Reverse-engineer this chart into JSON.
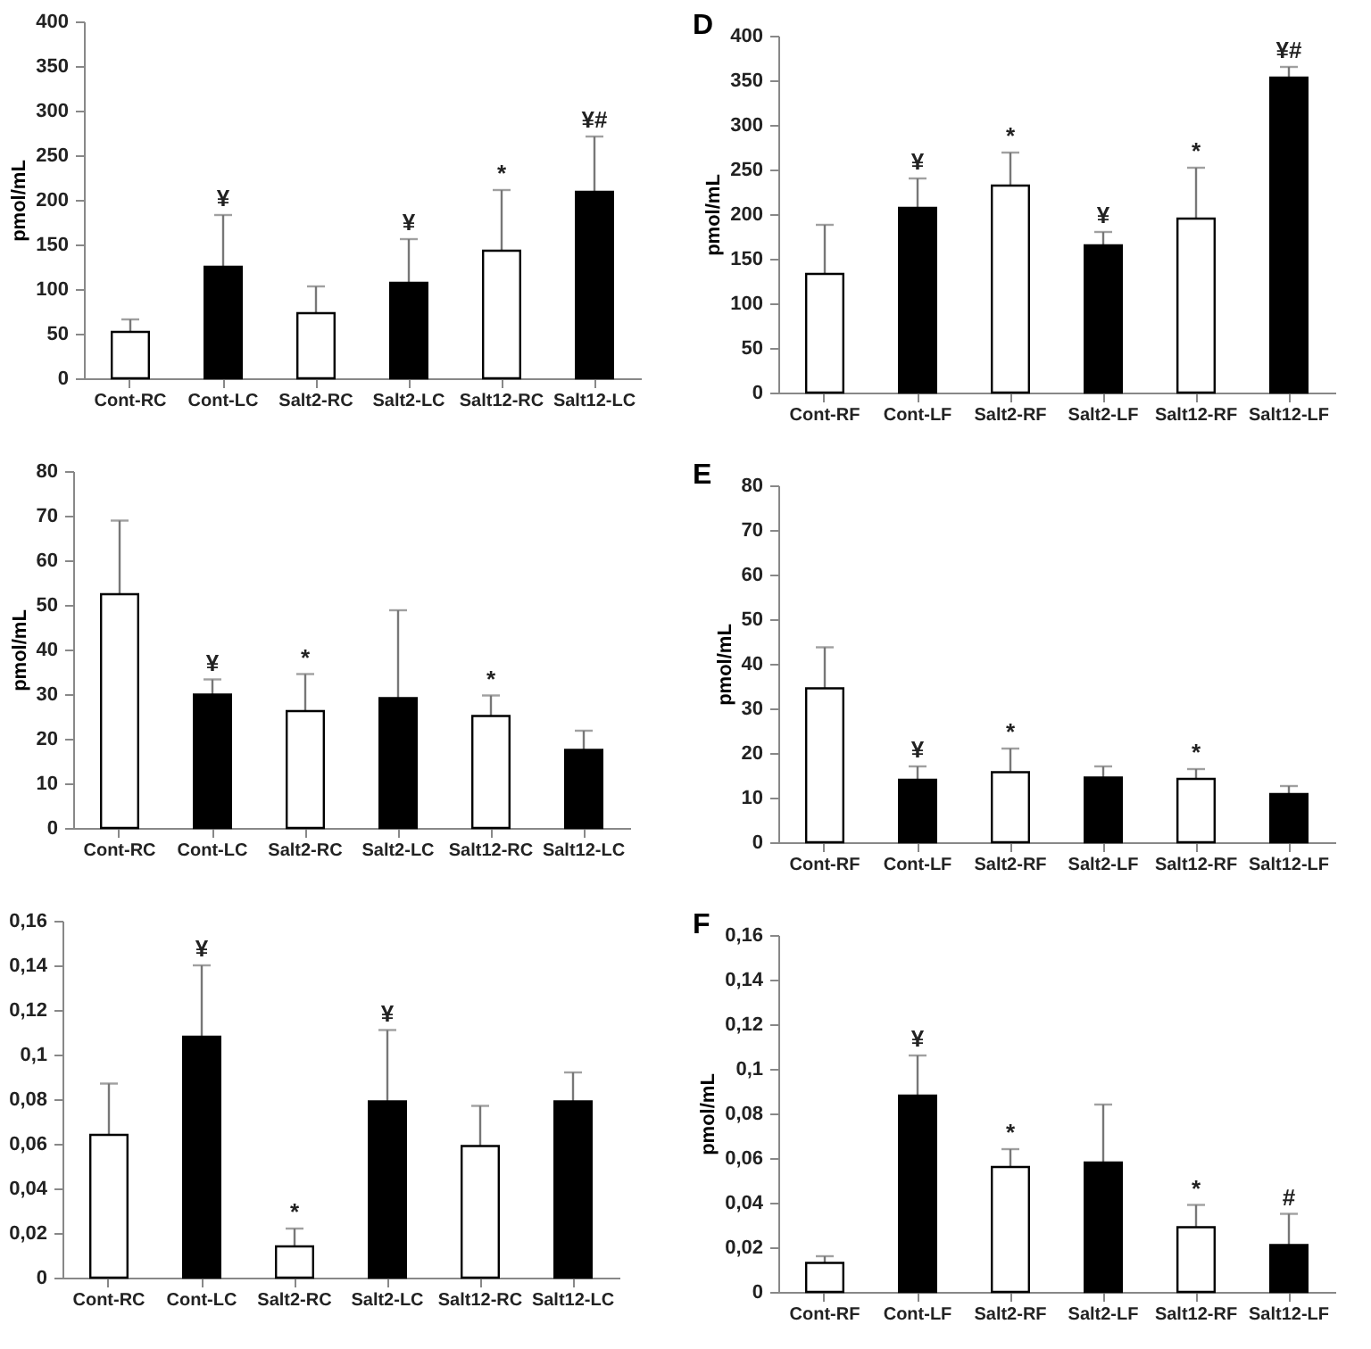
{
  "chart_data": [
    {
      "type": "bar",
      "ylabel": "pmol/mL",
      "categories": [
        "Cont-RC",
        "Cont-LC",
        "Salt2-RC",
        "Salt2-LC",
        "Salt12-RC",
        "Salt12-LC"
      ],
      "values": [
        52,
        125,
        73,
        107,
        143,
        209
      ],
      "colors": [
        "#ffffff",
        "#000000",
        "#ffffff",
        "#000000",
        "#ffffff",
        "#000000"
      ],
      "errors": [
        [
          52,
          66
        ],
        [
          125,
          183
        ],
        [
          73,
          103
        ],
        [
          107,
          156
        ],
        [
          143,
          211
        ],
        [
          209,
          271
        ]
      ],
      "ylim": [
        0,
        400
      ],
      "yticks": [
        0,
        50,
        100,
        150,
        200,
        250,
        300,
        350,
        400
      ],
      "grid": false,
      "annotations": [
        {
          "text": "¥",
          "x": "Cont-LC",
          "y": 183
        },
        {
          "text": "¥",
          "x": "Salt2-LC",
          "y": 156
        },
        {
          "text": "*",
          "x": "Salt12-RC",
          "y": 211
        },
        {
          "text": "¥#",
          "x": "Salt12-LC",
          "y": 271
        }
      ]
    },
    {
      "type": "bar",
      "title": "D",
      "ylabel": "pmol/mL",
      "categories": [
        "Cont-RF",
        "Cont-LF",
        "Salt2-RF",
        "Salt2-LF",
        "Salt12-RF",
        "Salt12-LF"
      ],
      "values": [
        133,
        207,
        232,
        165,
        195,
        353
      ],
      "colors": [
        "#ffffff",
        "#000000",
        "#ffffff",
        "#000000",
        "#ffffff",
        "#000000"
      ],
      "errors": [
        [
          133,
          188
        ],
        [
          207,
          240
        ],
        [
          232,
          269
        ],
        [
          165,
          180
        ],
        [
          195,
          252
        ],
        [
          353,
          365
        ]
      ],
      "ylim": [
        0,
        400
      ],
      "yticks": [
        0,
        50,
        100,
        150,
        200,
        250,
        300,
        350,
        400
      ],
      "grid": false,
      "annotations": [
        {
          "text": "¥",
          "x": "Cont-LF",
          "y": 240
        },
        {
          "text": "*",
          "x": "Salt2-RF",
          "y": 269
        },
        {
          "text": "¥",
          "x": "Salt2-LF",
          "y": 180
        },
        {
          "text": "*",
          "x": "Salt12-RF",
          "y": 252
        },
        {
          "text": "¥#",
          "x": "Salt12-LF",
          "y": 365
        }
      ]
    },
    {
      "type": "bar",
      "ylabel": "pmol/mL",
      "categories": [
        "Cont-RC",
        "Cont-LC",
        "Salt2-RC",
        "Salt2-LC",
        "Salt12-RC",
        "Salt12-LC"
      ],
      "values": [
        52.4,
        29.9,
        26.2,
        29.1,
        25.1,
        17.5
      ],
      "colors": [
        "#ffffff",
        "#000000",
        "#ffffff",
        "#000000",
        "#ffffff",
        "#000000"
      ],
      "errors": [
        [
          52.4,
          68.9
        ],
        [
          29.9,
          33.3
        ],
        [
          26.2,
          34.5
        ],
        [
          29.1,
          48.8
        ],
        [
          25.1,
          29.7
        ],
        [
          17.5,
          21.8
        ]
      ],
      "ylim": [
        0,
        80
      ],
      "yticks": [
        0,
        10,
        20,
        30,
        40,
        50,
        60,
        70,
        80
      ],
      "grid": false,
      "annotations": [
        {
          "text": "¥",
          "x": "Cont-LC",
          "y": 33.3
        },
        {
          "text": "*",
          "x": "Salt2-RC",
          "y": 34.5
        },
        {
          "text": "*",
          "x": "Salt12-RC",
          "y": 29.7
        }
      ]
    },
    {
      "type": "bar",
      "title": "E",
      "ylabel": "pmol/mL",
      "categories": [
        "Cont-RF",
        "Cont-LF",
        "Salt2-RF",
        "Salt2-LF",
        "Salt12-RF",
        "Salt12-LF"
      ],
      "values": [
        34.5,
        14,
        15.7,
        14.5,
        14.2,
        10.8
      ],
      "colors": [
        "#ffffff",
        "#000000",
        "#ffffff",
        "#000000",
        "#ffffff",
        "#000000"
      ],
      "errors": [
        [
          34.5,
          43.7
        ],
        [
          14,
          17
        ],
        [
          15.7,
          21
        ],
        [
          14.5,
          17
        ],
        [
          14.2,
          16.4
        ],
        [
          10.8,
          12.6
        ]
      ],
      "ylim": [
        0,
        80
      ],
      "yticks": [
        0,
        10,
        20,
        30,
        40,
        50,
        60,
        70,
        80
      ],
      "grid": false,
      "annotations": [
        {
          "text": "¥",
          "x": "Cont-LF",
          "y": 17
        },
        {
          "text": "*",
          "x": "Salt2-RF",
          "y": 21
        },
        {
          "text": "*",
          "x": "Salt12-RF",
          "y": 16.4
        }
      ]
    },
    {
      "type": "bar",
      "categories": [
        "Cont-RC",
        "Cont-LC",
        "Salt2-RC",
        "Salt2-LC",
        "Salt12-RC",
        "Salt12-LC"
      ],
      "values": [
        0.064,
        0.108,
        0.014,
        0.079,
        0.059,
        0.079
      ],
      "colors": [
        "#ffffff",
        "#000000",
        "#ffffff",
        "#000000",
        "#ffffff",
        "#000000"
      ],
      "errors": [
        [
          0.064,
          0.087
        ],
        [
          0.108,
          0.14
        ],
        [
          0.014,
          0.022
        ],
        [
          0.079,
          0.111
        ],
        [
          0.059,
          0.077
        ],
        [
          0.079,
          0.092
        ]
      ],
      "ylim": [
        0,
        0.16
      ],
      "yticks": [
        0,
        {
          "value": 0.02,
          "label": "0,02"
        },
        {
          "value": 0.04,
          "label": "0,04"
        },
        {
          "value": 0.06,
          "label": "0,06"
        },
        {
          "value": 0.08,
          "label": "0,08"
        },
        {
          "value": 0.1,
          "label": "0,1"
        },
        {
          "value": 0.12,
          "label": "0,12"
        },
        {
          "value": 0.14,
          "label": "0,14"
        },
        {
          "value": 0.16,
          "label": "0,16"
        }
      ],
      "grid": false,
      "annotations": [
        {
          "text": "¥",
          "x": "Cont-LC",
          "y": 0.14
        },
        {
          "text": "*",
          "x": "Salt2-RC",
          "y": 0.022
        },
        {
          "text": "¥",
          "x": "Salt2-LC",
          "y": 0.111
        }
      ]
    },
    {
      "type": "bar",
      "title": "F",
      "ylabel": "pmol/mL",
      "categories": [
        "Cont-RF",
        "Cont-LF",
        "Salt2-RF",
        "Salt2-LF",
        "Salt12-RF",
        "Salt12-LF"
      ],
      "values": [
        0.013,
        0.088,
        0.056,
        0.058,
        0.029,
        0.021
      ],
      "colors": [
        "#ffffff",
        "#000000",
        "#ffffff",
        "#000000",
        "#ffffff",
        "#000000"
      ],
      "errors": [
        [
          0.013,
          0.016
        ],
        [
          0.088,
          0.106
        ],
        [
          0.056,
          0.064
        ],
        [
          0.058,
          0.084
        ],
        [
          0.029,
          0.039
        ],
        [
          0.021,
          0.035
        ]
      ],
      "ylim": [
        0,
        0.16
      ],
      "yticks": [
        0,
        {
          "value": 0.02,
          "label": "0,02"
        },
        {
          "value": 0.04,
          "label": "0,04"
        },
        {
          "value": 0.06,
          "label": "0,06"
        },
        {
          "value": 0.08,
          "label": "0,08"
        },
        {
          "value": 0.1,
          "label": "0,1"
        },
        {
          "value": 0.12,
          "label": "0,12"
        },
        {
          "value": 0.14,
          "label": "0,14"
        },
        {
          "value": 0.16,
          "label": "0,16"
        }
      ],
      "grid": false,
      "annotations": [
        {
          "text": "¥",
          "x": "Cont-LF",
          "y": 0.106
        },
        {
          "text": "*",
          "x": "Salt2-RF",
          "y": 0.064
        },
        {
          "text": "*",
          "x": "Salt12-RF",
          "y": 0.039
        },
        {
          "text": "#",
          "x": "Salt12-LF",
          "y": 0.035
        }
      ]
    }
  ]
}
